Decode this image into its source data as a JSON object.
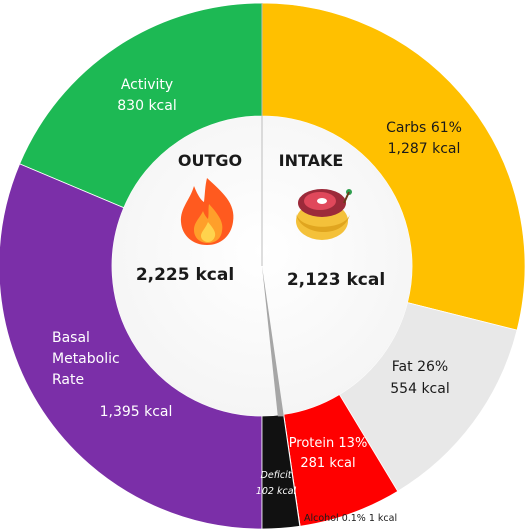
{
  "chart_data": {
    "type": "pie",
    "outgo": {
      "title": "OUTGO",
      "total": "2,225 kcal",
      "segments": [
        {
          "name": "Activity",
          "value": 830,
          "label": "830 kcal",
          "color": "#1db954"
        },
        {
          "name": "Basal Metabolic Rate",
          "label_lines": [
            "Basal",
            "Metabolic",
            "Rate"
          ],
          "value": 1395,
          "label": "1,395 kcal",
          "color": "#7b2fa8"
        }
      ]
    },
    "intake": {
      "title": "INTAKE",
      "total": "2,123 kcal",
      "segments": [
        {
          "name": "Carbs",
          "percent": "61%",
          "value": 1287,
          "label": "1,287 kcal",
          "color": "#ffc000"
        },
        {
          "name": "Fat",
          "percent": "26%",
          "value": 554,
          "label": "554 kcal",
          "color": "#e8e8e8"
        },
        {
          "name": "Protein",
          "percent": "13%",
          "value": 281,
          "label": "281 kcal",
          "color": "#ff0000"
        },
        {
          "name": "Alcohol",
          "percent": "0.1%",
          "value": 1,
          "label": "1 kcal",
          "color": "#a6a6a6"
        }
      ]
    },
    "deficit": {
      "name": "Deficit",
      "value": 102,
      "label": "102 kcal",
      "color": "#111111"
    }
  },
  "icons": {
    "outgo_icon": "flame-icon",
    "intake_icon": "food-icon"
  }
}
